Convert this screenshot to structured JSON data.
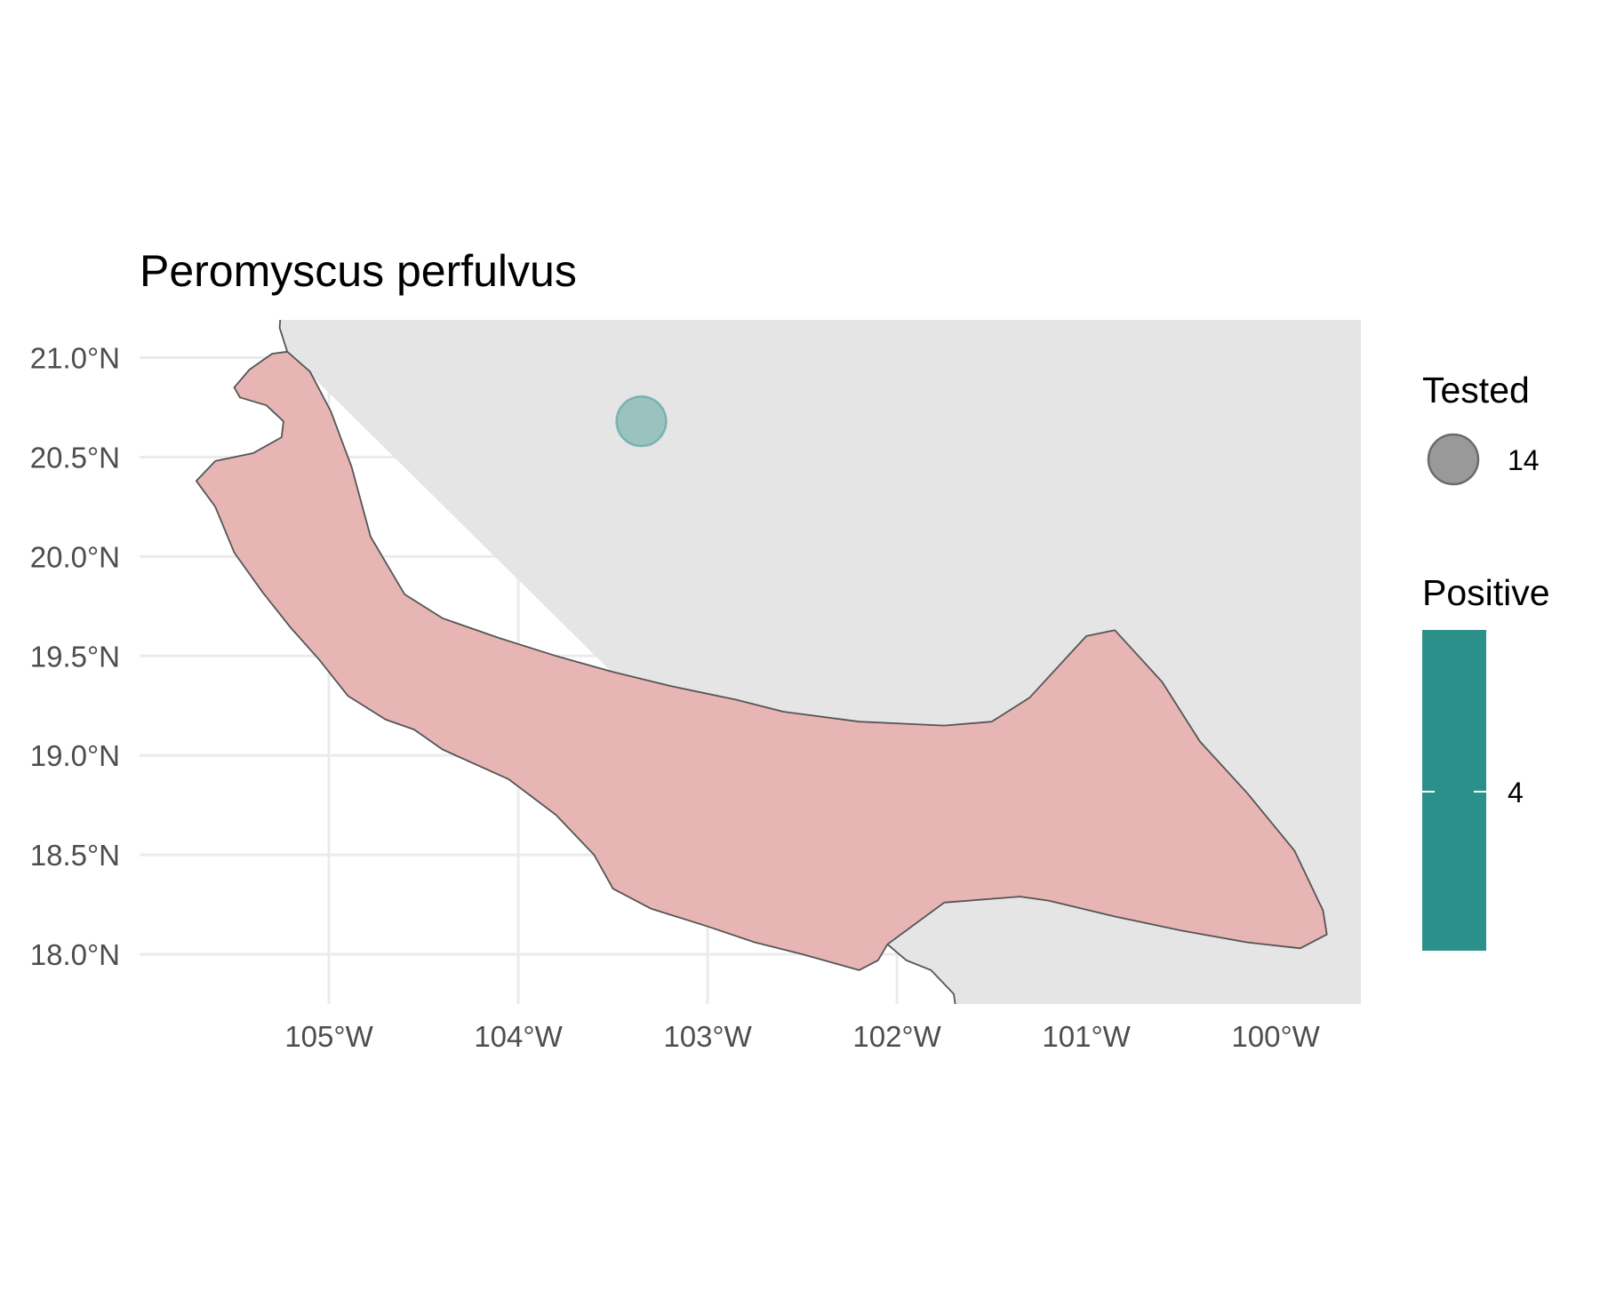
{
  "title": "Peromyscus perfulvus",
  "colors": {
    "background": "#ffffff",
    "panel_fill": "#e5e5e5",
    "land_fill": "#e8b5b5",
    "outline": "#555555",
    "grid": "#ebebeb",
    "point_fill": "#2a9089",
    "point_alpha": 0.4,
    "legend_bar": "#2a9089"
  },
  "chart_data": {
    "type": "map",
    "title": "Peromyscus perfulvus",
    "x_axis": {
      "range": [
        -106.0,
        -99.55
      ],
      "ticks": [
        -105,
        -104,
        -103,
        -102,
        -101,
        -100
      ],
      "tick_labels": [
        "105°W",
        "104°W",
        "103°W",
        "102°W",
        "101°W",
        "100°W"
      ]
    },
    "y_axis": {
      "range": [
        17.75,
        21.19
      ],
      "ticks": [
        18.0,
        18.5,
        19.0,
        19.5,
        20.0,
        20.5,
        21.0
      ],
      "tick_labels": [
        "18.0°N",
        "18.5°N",
        "19.0°N",
        "19.5°N",
        "20.0°N",
        "20.5°N",
        "21.0°N"
      ]
    },
    "grid": true,
    "region": {
      "outline": [
        [
          -105.22,
          21.03
        ],
        [
          -105.1,
          20.93
        ],
        [
          -104.99,
          20.73
        ],
        [
          -104.88,
          20.45
        ],
        [
          -104.78,
          20.1
        ],
        [
          -104.6,
          19.81
        ],
        [
          -104.4,
          19.69
        ],
        [
          -104.1,
          19.59
        ],
        [
          -103.8,
          19.5
        ],
        [
          -103.5,
          19.42
        ],
        [
          -103.2,
          19.35
        ],
        [
          -102.85,
          19.28
        ],
        [
          -102.6,
          19.22
        ],
        [
          -102.2,
          19.17
        ],
        [
          -101.75,
          19.15
        ],
        [
          -101.5,
          19.17
        ],
        [
          -101.3,
          19.29
        ],
        [
          -101.0,
          19.6
        ],
        [
          -100.85,
          19.63
        ],
        [
          -100.6,
          19.37
        ],
        [
          -100.4,
          19.07
        ],
        [
          -100.15,
          18.81
        ],
        [
          -99.9,
          18.52
        ],
        [
          -99.75,
          18.22
        ],
        [
          -99.73,
          18.1
        ],
        [
          -99.87,
          18.03
        ],
        [
          -100.15,
          18.06
        ],
        [
          -100.5,
          18.12
        ],
        [
          -100.85,
          18.19
        ],
        [
          -101.2,
          18.27
        ],
        [
          -101.35,
          18.29
        ],
        [
          -101.75,
          18.26
        ],
        [
          -102.05,
          18.05
        ],
        [
          -102.1,
          17.97
        ],
        [
          -102.2,
          17.92
        ],
        [
          -102.5,
          18.0
        ],
        [
          -102.75,
          18.06
        ],
        [
          -103.0,
          18.14
        ],
        [
          -103.3,
          18.23
        ],
        [
          -103.5,
          18.33
        ],
        [
          -103.6,
          18.5
        ],
        [
          -103.8,
          18.7
        ],
        [
          -104.05,
          18.88
        ],
        [
          -104.4,
          19.03
        ],
        [
          -104.55,
          19.13
        ],
        [
          -104.7,
          19.18
        ],
        [
          -104.9,
          19.3
        ],
        [
          -105.05,
          19.48
        ],
        [
          -105.2,
          19.64
        ],
        [
          -105.35,
          19.82
        ],
        [
          -105.5,
          20.02
        ],
        [
          -105.6,
          20.25
        ],
        [
          -105.7,
          20.38
        ],
        [
          -105.6,
          20.48
        ],
        [
          -105.4,
          20.52
        ],
        [
          -105.25,
          20.6
        ],
        [
          -105.24,
          20.68
        ],
        [
          -105.33,
          20.76
        ],
        [
          -105.47,
          20.8
        ],
        [
          -105.5,
          20.85
        ],
        [
          -105.42,
          20.94
        ],
        [
          -105.3,
          21.02
        ],
        [
          -105.22,
          21.03
        ]
      ]
    },
    "points": [
      {
        "lon": -103.35,
        "lat": 20.68,
        "tested": 14,
        "positive": 4
      }
    ],
    "legends": {
      "size": {
        "title": "Tested",
        "entries": [
          {
            "value": 14,
            "label": "14"
          }
        ]
      },
      "color": {
        "title": "Positive",
        "labels": [
          "4"
        ]
      }
    }
  }
}
